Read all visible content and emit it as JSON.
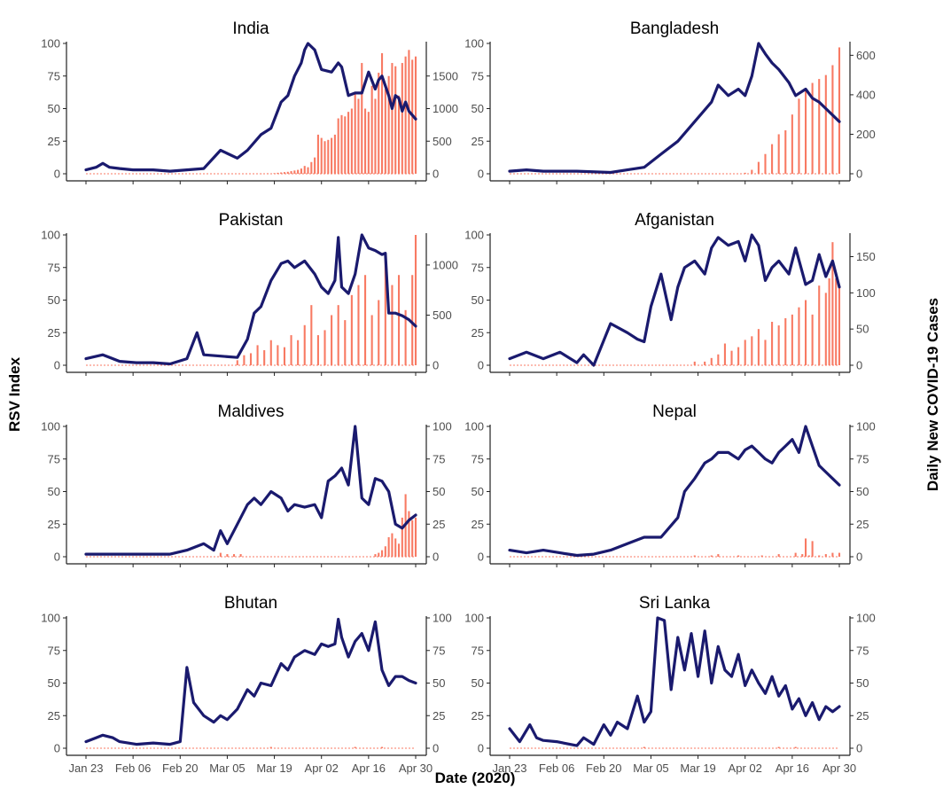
{
  "figure": {
    "y_left_label": "RSV Index",
    "y_right_label": "Daily New COVID-19 Cases",
    "x_label": "Date (2020)"
  },
  "chart_data": [
    {
      "type": "line+bar",
      "title": "India",
      "x_ticks": [
        "Jan 23",
        "Feb 06",
        "Feb 20",
        "Mar 05",
        "Mar 19",
        "Apr 02",
        "Apr 16",
        "Apr 30"
      ],
      "rsv_ylim": [
        0,
        100
      ],
      "rsv_ticks": [
        0,
        25,
        50,
        75,
        100
      ],
      "cases_ylim": [
        0,
        2000
      ],
      "cases_ticks": [
        0,
        500,
        1000,
        1500
      ],
      "rsv_series": {
        "day": [
          0,
          3,
          5,
          7,
          10,
          14,
          20,
          25,
          30,
          35,
          40,
          45,
          48,
          52,
          55,
          58,
          60,
          62,
          64,
          65,
          66,
          68,
          70,
          73,
          75,
          76,
          78,
          80,
          82,
          84,
          86,
          87,
          88,
          90,
          91,
          92,
          93,
          94,
          95,
          96,
          97,
          98
        ],
        "value": [
          3,
          5,
          8,
          5,
          4,
          3,
          3,
          2,
          3,
          4,
          18,
          12,
          18,
          30,
          35,
          55,
          60,
          75,
          85,
          95,
          100,
          95,
          80,
          78,
          85,
          82,
          60,
          62,
          62,
          78,
          65,
          72,
          75,
          60,
          50,
          60,
          58,
          48,
          55,
          48,
          45,
          42
        ]
      },
      "cases_series": {
        "day": [
          52,
          54,
          56,
          57,
          58,
          59,
          60,
          61,
          62,
          63,
          64,
          65,
          66,
          67,
          68,
          69,
          70,
          71,
          72,
          73,
          74,
          75,
          76,
          77,
          78,
          79,
          80,
          81,
          82,
          83,
          84,
          85,
          86,
          87,
          88,
          89,
          90,
          91,
          92,
          93,
          94,
          95,
          96,
          97,
          98
        ],
        "value": [
          5,
          8,
          10,
          15,
          20,
          25,
          30,
          40,
          50,
          60,
          80,
          120,
          100,
          180,
          250,
          600,
          550,
          500,
          520,
          550,
          600,
          850,
          900,
          880,
          950,
          1000,
          1250,
          1150,
          1700,
          1000,
          950,
          1350,
          1150,
          1550,
          1850,
          1300,
          1500,
          1700,
          1650,
          1200,
          1700,
          1800,
          1900,
          1750,
          1800
        ]
      }
    },
    {
      "type": "line+bar",
      "title": "Bangladesh",
      "x_ticks": [
        "Jan 23",
        "Feb 06",
        "Feb 20",
        "Mar 05",
        "Mar 19",
        "Apr 02",
        "Apr 16",
        "Apr 30"
      ],
      "rsv_ylim": [
        0,
        100
      ],
      "rsv_ticks": [
        0,
        25,
        50,
        75,
        100
      ],
      "cases_ylim": [
        0,
        660
      ],
      "cases_ticks": [
        0,
        200,
        400,
        600
      ],
      "rsv_series": {
        "day": [
          0,
          5,
          10,
          20,
          30,
          35,
          40,
          45,
          50,
          55,
          60,
          62,
          65,
          68,
          70,
          72,
          74,
          76,
          78,
          80,
          83,
          85,
          88,
          90,
          92,
          94,
          96,
          98
        ],
        "value": [
          2,
          3,
          2,
          2,
          1,
          3,
          5,
          15,
          25,
          40,
          55,
          68,
          60,
          65,
          60,
          75,
          100,
          92,
          85,
          80,
          70,
          60,
          65,
          58,
          55,
          50,
          45,
          40
        ]
      },
      "cases_series": {
        "day": [
          70,
          72,
          74,
          76,
          78,
          80,
          82,
          84,
          86,
          88,
          90,
          92,
          94,
          96,
          98
        ],
        "value": [
          5,
          20,
          60,
          100,
          150,
          200,
          220,
          300,
          380,
          430,
          460,
          480,
          500,
          550,
          640
        ]
      }
    },
    {
      "type": "line+bar",
      "title": "Pakistan",
      "x_ticks": [
        "Jan 23",
        "Feb 06",
        "Feb 20",
        "Mar 05",
        "Mar 19",
        "Apr 02",
        "Apr 16",
        "Apr 30"
      ],
      "rsv_ylim": [
        0,
        100
      ],
      "rsv_ticks": [
        0,
        25,
        50,
        75,
        100
      ],
      "cases_ylim": [
        0,
        1300
      ],
      "cases_ticks": [
        0,
        500,
        1000
      ],
      "rsv_series": {
        "day": [
          0,
          5,
          10,
          15,
          20,
          25,
          30,
          33,
          35,
          40,
          45,
          48,
          50,
          52,
          55,
          58,
          60,
          62,
          65,
          68,
          70,
          72,
          74,
          75,
          76,
          78,
          80,
          82,
          84,
          86,
          88,
          89,
          90,
          92,
          94,
          96,
          98
        ],
        "value": [
          5,
          8,
          3,
          2,
          2,
          1,
          5,
          25,
          8,
          7,
          6,
          20,
          40,
          45,
          65,
          78,
          80,
          75,
          80,
          70,
          60,
          55,
          65,
          98,
          60,
          55,
          70,
          100,
          90,
          88,
          85,
          86,
          40,
          40,
          38,
          35,
          30
        ]
      },
      "cases_series": {
        "day": [
          45,
          47,
          49,
          51,
          53,
          55,
          57,
          59,
          61,
          63,
          65,
          67,
          69,
          71,
          73,
          75,
          77,
          79,
          81,
          83,
          85,
          87,
          89,
          91,
          93,
          95,
          97,
          98
        ],
        "value": [
          50,
          100,
          120,
          200,
          150,
          250,
          200,
          180,
          300,
          250,
          400,
          600,
          300,
          350,
          500,
          600,
          450,
          700,
          800,
          900,
          500,
          650,
          1100,
          800,
          900,
          550,
          900,
          1300
        ]
      }
    },
    {
      "type": "line+bar",
      "title": "Afganistan",
      "x_ticks": [
        "Jan 23",
        "Feb 06",
        "Feb 20",
        "Mar 05",
        "Mar 19",
        "Apr 02",
        "Apr 16",
        "Apr 30"
      ],
      "rsv_ylim": [
        0,
        100
      ],
      "rsv_ticks": [
        0,
        25,
        50,
        75,
        100
      ],
      "cases_ylim": [
        0,
        180
      ],
      "cases_ticks": [
        0,
        50,
        100,
        150
      ],
      "rsv_series": {
        "day": [
          0,
          5,
          10,
          15,
          20,
          22,
          25,
          30,
          35,
          38,
          40,
          42,
          45,
          48,
          50,
          52,
          55,
          58,
          60,
          62,
          65,
          68,
          70,
          72,
          74,
          76,
          78,
          80,
          83,
          85,
          88,
          90,
          92,
          94,
          96,
          98
        ],
        "value": [
          5,
          10,
          5,
          10,
          2,
          8,
          0,
          32,
          25,
          20,
          18,
          45,
          70,
          35,
          60,
          75,
          80,
          70,
          90,
          98,
          92,
          95,
          80,
          100,
          92,
          65,
          75,
          80,
          70,
          90,
          62,
          65,
          85,
          68,
          80,
          60
        ]
      },
      "cases_series": {
        "day": [
          55,
          58,
          60,
          62,
          64,
          66,
          68,
          70,
          72,
          74,
          76,
          78,
          80,
          82,
          84,
          86,
          88,
          90,
          92,
          94,
          95,
          96,
          97,
          98
        ],
        "value": [
          5,
          5,
          10,
          15,
          30,
          20,
          25,
          35,
          40,
          50,
          35,
          60,
          55,
          65,
          70,
          80,
          90,
          70,
          110,
          100,
          120,
          170,
          120,
          110
        ]
      }
    },
    {
      "type": "line+bar",
      "title": "Maldives",
      "x_ticks": [
        "Jan 23",
        "Feb 06",
        "Feb 20",
        "Mar 05",
        "Mar 19",
        "Apr 02",
        "Apr 16",
        "Apr 30"
      ],
      "rsv_ylim": [
        0,
        100
      ],
      "rsv_ticks": [
        0,
        25,
        50,
        75,
        100
      ],
      "cases_ylim": [
        0,
        100
      ],
      "cases_ticks": [
        0,
        25,
        50,
        75,
        100
      ],
      "rsv_series": {
        "day": [
          0,
          10,
          20,
          25,
          30,
          35,
          38,
          40,
          42,
          45,
          48,
          50,
          52,
          55,
          58,
          60,
          62,
          65,
          68,
          70,
          72,
          74,
          75,
          76,
          78,
          80,
          82,
          84,
          86,
          88,
          90,
          92,
          94,
          96,
          98
        ],
        "value": [
          2,
          2,
          2,
          2,
          5,
          10,
          5,
          20,
          10,
          25,
          40,
          45,
          40,
          50,
          45,
          35,
          40,
          38,
          40,
          30,
          58,
          62,
          65,
          68,
          55,
          100,
          45,
          40,
          60,
          58,
          50,
          25,
          22,
          28,
          32
        ]
      },
      "cases_series": {
        "day": [
          40,
          42,
          44,
          46,
          86,
          87,
          88,
          89,
          90,
          91,
          92,
          93,
          94,
          95,
          96,
          97,
          98
        ],
        "value": [
          3,
          2,
          2,
          2,
          2,
          3,
          5,
          8,
          15,
          18,
          14,
          10,
          30,
          48,
          35,
          28,
          30
        ]
      }
    },
    {
      "type": "line+bar",
      "title": "Nepal",
      "x_ticks": [
        "Jan 23",
        "Feb 06",
        "Feb 20",
        "Mar 05",
        "Mar 19",
        "Apr 02",
        "Apr 16",
        "Apr 30"
      ],
      "rsv_ylim": [
        0,
        100
      ],
      "rsv_ticks": [
        0,
        25,
        50,
        75,
        100
      ],
      "cases_ylim": [
        0,
        100
      ],
      "cases_ticks": [
        0,
        25,
        50,
        75,
        100
      ],
      "rsv_series": {
        "day": [
          0,
          5,
          10,
          15,
          20,
          25,
          30,
          35,
          40,
          45,
          50,
          52,
          55,
          58,
          60,
          62,
          65,
          68,
          70,
          72,
          74,
          76,
          78,
          80,
          82,
          84,
          86,
          88,
          90,
          92,
          94,
          96,
          98
        ],
        "value": [
          5,
          3,
          5,
          3,
          1,
          2,
          5,
          10,
          15,
          15,
          30,
          50,
          60,
          72,
          75,
          80,
          80,
          75,
          82,
          85,
          80,
          75,
          72,
          80,
          85,
          90,
          80,
          100,
          85,
          70,
          65,
          60,
          55
        ]
      },
      "cases_series": {
        "day": [
          55,
          60,
          62,
          68,
          75,
          80,
          85,
          87,
          88,
          89,
          90,
          92,
          94,
          96,
          98
        ],
        "value": [
          1,
          1,
          2,
          1,
          1,
          2,
          3,
          2,
          14,
          1,
          12,
          1,
          2,
          3,
          3
        ]
      }
    },
    {
      "type": "line+bar",
      "title": "Bhutan",
      "x_ticks": [
        "Jan 23",
        "Feb 06",
        "Feb 20",
        "Mar 05",
        "Mar 19",
        "Apr 02",
        "Apr 16",
        "Apr 30"
      ],
      "rsv_ylim": [
        0,
        100
      ],
      "rsv_ticks": [
        0,
        25,
        50,
        75,
        100
      ],
      "cases_ylim": [
        0,
        100
      ],
      "cases_ticks": [
        0,
        25,
        50,
        75,
        100
      ],
      "rsv_series": {
        "day": [
          0,
          3,
          5,
          8,
          10,
          15,
          20,
          25,
          28,
          30,
          32,
          35,
          38,
          40,
          42,
          45,
          48,
          50,
          52,
          55,
          58,
          60,
          62,
          65,
          68,
          70,
          72,
          74,
          75,
          76,
          78,
          80,
          82,
          84,
          86,
          88,
          90,
          92,
          94,
          96,
          98
        ],
        "value": [
          5,
          8,
          10,
          8,
          5,
          3,
          4,
          3,
          5,
          62,
          35,
          25,
          20,
          25,
          22,
          30,
          45,
          40,
          50,
          48,
          65,
          60,
          70,
          75,
          72,
          80,
          78,
          80,
          99,
          85,
          70,
          82,
          88,
          75,
          97,
          60,
          48,
          55,
          55,
          52,
          50
        ]
      },
      "cases_series": {
        "day": [
          55,
          80,
          88
        ],
        "value": [
          1,
          1,
          1
        ]
      }
    },
    {
      "type": "line+bar",
      "title": "Sri Lanka",
      "x_ticks": [
        "Jan 23",
        "Feb 06",
        "Feb 20",
        "Mar 05",
        "Mar 19",
        "Apr 02",
        "Apr 16",
        "Apr 30"
      ],
      "rsv_ylim": [
        0,
        100
      ],
      "rsv_ticks": [
        0,
        25,
        50,
        75,
        100
      ],
      "cases_ylim": [
        0,
        100
      ],
      "cases_ticks": [
        0,
        25,
        50,
        75,
        100
      ],
      "rsv_series": {
        "day": [
          0,
          3,
          6,
          8,
          10,
          14,
          20,
          22,
          25,
          28,
          30,
          32,
          35,
          38,
          40,
          42,
          44,
          46,
          48,
          50,
          52,
          54,
          56,
          58,
          60,
          62,
          64,
          66,
          68,
          70,
          72,
          74,
          76,
          78,
          80,
          82,
          84,
          86,
          88,
          90,
          92,
          94,
          96,
          98
        ],
        "value": [
          15,
          5,
          18,
          8,
          6,
          5,
          2,
          8,
          3,
          18,
          10,
          20,
          15,
          40,
          20,
          28,
          100,
          98,
          45,
          85,
          60,
          88,
          55,
          90,
          50,
          78,
          60,
          55,
          72,
          48,
          60,
          50,
          42,
          55,
          40,
          48,
          30,
          38,
          25,
          35,
          22,
          32,
          28,
          32
        ]
      },
      "cases_series": {
        "day": [
          40,
          80,
          85
        ],
        "value": [
          1,
          1,
          1
        ]
      }
    }
  ]
}
